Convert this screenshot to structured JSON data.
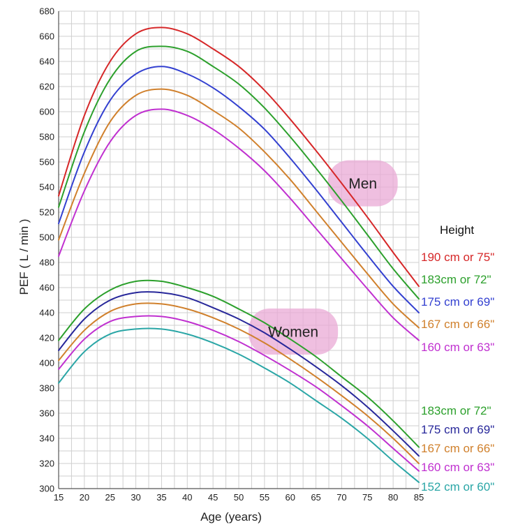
{
  "chart_data": {
    "type": "line",
    "xlabel": "Age (years)",
    "ylabel": "PEF ( L / min )",
    "xlim": [
      15,
      85
    ],
    "ylim": [
      300,
      680
    ],
    "x_ticks": [
      15,
      20,
      25,
      30,
      35,
      40,
      45,
      50,
      55,
      60,
      65,
      70,
      75,
      80,
      85
    ],
    "y_ticks": [
      300,
      320,
      340,
      360,
      380,
      400,
      420,
      440,
      460,
      480,
      500,
      520,
      540,
      560,
      580,
      600,
      620,
      640,
      660,
      680
    ],
    "grid": true,
    "legend_title": "Height",
    "x": [
      15,
      20,
      25,
      30,
      35,
      40,
      45,
      50,
      55,
      60,
      65,
      70,
      75,
      80,
      85
    ],
    "groups": [
      {
        "label": "Men",
        "series": [
          {
            "name": "190 cm or 75\"",
            "color": "#d62728",
            "values": [
              533,
              597,
              640,
              662,
              667,
              662,
              650,
              636,
              617,
              594,
              569,
              543,
              516,
              488,
              461
            ]
          },
          {
            "name": "183cm or 72\"",
            "color": "#2ca02c",
            "values": [
              524,
              584,
              626,
              648,
              652,
              648,
              636,
              622,
              603,
              580,
              555,
              529,
              502,
              475,
              451
            ]
          },
          {
            "name": "175 cm or 69\"",
            "color": "#3340d0",
            "values": [
              511,
              568,
              609,
              630,
              636,
              630,
              619,
              604,
              586,
              563,
              538,
              512,
              486,
              461,
              440
            ]
          },
          {
            "name": "167 cm or 66\"",
            "color": "#d0802c",
            "values": [
              498,
              551,
              592,
              613,
              618,
              613,
              601,
              587,
              568,
              546,
              521,
              496,
              471,
              447,
              428
            ]
          },
          {
            "name": "160 cm or 63\"",
            "color": "#c030d0",
            "values": [
              485,
              537,
              576,
              597,
              602,
              597,
              586,
              571,
              553,
              531,
              507,
              483,
              459,
              436,
              418
            ]
          }
        ]
      },
      {
        "label": "Women",
        "series": [
          {
            "name": "183cm or 72\"",
            "color": "#2ca02c",
            "values": [
              418,
              443,
              458,
              465,
              465,
              460,
              453,
              443,
              432,
              419,
              405,
              389,
              373,
              354,
              333
            ]
          },
          {
            "name": "175 cm or 69\"",
            "color": "#27279a",
            "values": [
              410,
              435,
              450,
              456,
              456,
              452,
              444,
              435,
              424,
              411,
              397,
              382,
              365,
              346,
              326
            ]
          },
          {
            "name": "167 cm or 66\"",
            "color": "#d0802c",
            "values": [
              402,
              426,
              441,
              447,
              447,
              443,
              436,
              427,
              416,
              403,
              389,
              374,
              358,
              340,
              320
            ]
          },
          {
            "name": "160 cm or 63\"",
            "color": "#c030d0",
            "values": [
              395,
              419,
              433,
              437,
              437,
              433,
              426,
              417,
              406,
              394,
              381,
              366,
              350,
              332,
              314
            ]
          },
          {
            "name": "152 cm or 60\"",
            "color": "#2aa6a6",
            "values": [
              384,
              409,
              423,
              427,
              427,
              423,
              416,
              407,
              396,
              384,
              370,
              356,
              340,
              322,
              305
            ]
          }
        ]
      }
    ]
  }
}
